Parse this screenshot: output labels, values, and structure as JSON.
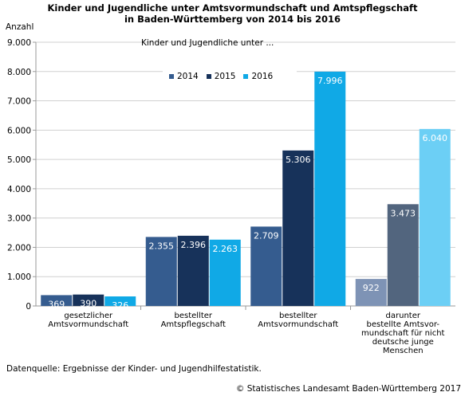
{
  "title_line1": "Kinder und Jugendliche unter Amtsvormundschaft und Amtspflegschaft",
  "title_line2": "in Baden-Württemberg von 2014 bis 2016",
  "footnote": "Datenquelle: Ergebnisse der Kinder- und Jugendhilfestatistik.",
  "copyright": "© Statistisches Landesamt Baden-Württemberg 2017",
  "chart_data": {
    "type": "bar",
    "title": "Kinder und Jugendliche unter Amtsvormundschaft und Amtspflegschaft in Baden-Württemberg von 2014 bis 2016",
    "subtitle": "Kinder und Jugendliche unter ...",
    "ylabel": "Anzahl",
    "xlabel": "",
    "ylim": [
      0,
      9000
    ],
    "yticks": [
      "0",
      "1.000",
      "2.000",
      "3.000",
      "4.000",
      "5.000",
      "6.000",
      "7.000",
      "8.000",
      "9.000"
    ],
    "grid": true,
    "legend_position": "top-center",
    "categories": [
      [
        "gesetzlicher",
        "Amtsvormundschaft"
      ],
      [
        "bestellter",
        "Amtspflegschaft"
      ],
      [
        "bestellter",
        "Amtsvormundschaft"
      ],
      [
        "darunter",
        "bestellte Amtsvor-",
        "mundschaft für nicht",
        "deutsche junge",
        "Menschen"
      ]
    ],
    "series": [
      {
        "name": "2014",
        "color": "#355c8f",
        "values": [
          369,
          2355,
          2709,
          922
        ],
        "labels": [
          "369",
          "2.355",
          "2.709",
          "922"
        ]
      },
      {
        "name": "2015",
        "color": "#17325a",
        "values": [
          390,
          2396,
          5306,
          3473
        ],
        "labels": [
          "390",
          "2.396",
          "5.306",
          "3.473"
        ]
      },
      {
        "name": "2016",
        "color": "#10a9e6",
        "values": [
          326,
          2263,
          7996,
          6040
        ],
        "labels": [
          "326",
          "2.263",
          "7.996",
          "6.040"
        ]
      }
    ],
    "highlight_group_colors": [
      "#7e93b5",
      "#52657e",
      "#6ccff5"
    ]
  }
}
